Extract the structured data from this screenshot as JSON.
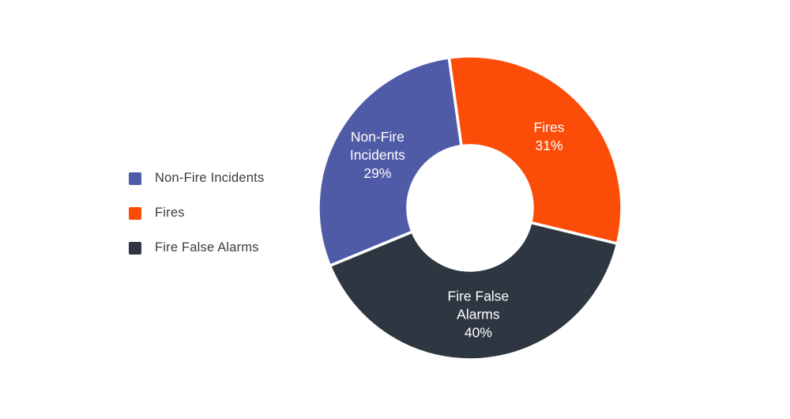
{
  "page": {
    "background": "#ffffff"
  },
  "legend": {
    "position": "left",
    "items": [
      {
        "label": "Non-Fire Incidents",
        "color": "#4F5BA7"
      },
      {
        "label": "Fires",
        "color": "#FB4D08"
      },
      {
        "label": "Fire False Alarms",
        "color": "#2E3741"
      }
    ]
  },
  "chart_data": {
    "type": "pie",
    "subtype": "donut",
    "unit": "%",
    "start_angle_deg": -8,
    "direction": "clockwise",
    "legend_position": "left",
    "labels_inside": true,
    "label_color": "#ffffff",
    "slice_gap_color": "#ffffff",
    "slices": [
      {
        "name": "Fires",
        "value": 31,
        "color": "#FB4D08",
        "label_lines": [
          "Fires",
          "31%"
        ]
      },
      {
        "name": "Fire False Alarms",
        "value": 40,
        "color": "#2E3741",
        "label_lines": [
          "Fire False",
          "Alarms",
          "40%"
        ]
      },
      {
        "name": "Non-Fire Incidents",
        "value": 29,
        "color": "#4F5BA7",
        "label_lines": [
          "Non-Fire",
          "Incidents",
          "29%"
        ]
      }
    ]
  }
}
